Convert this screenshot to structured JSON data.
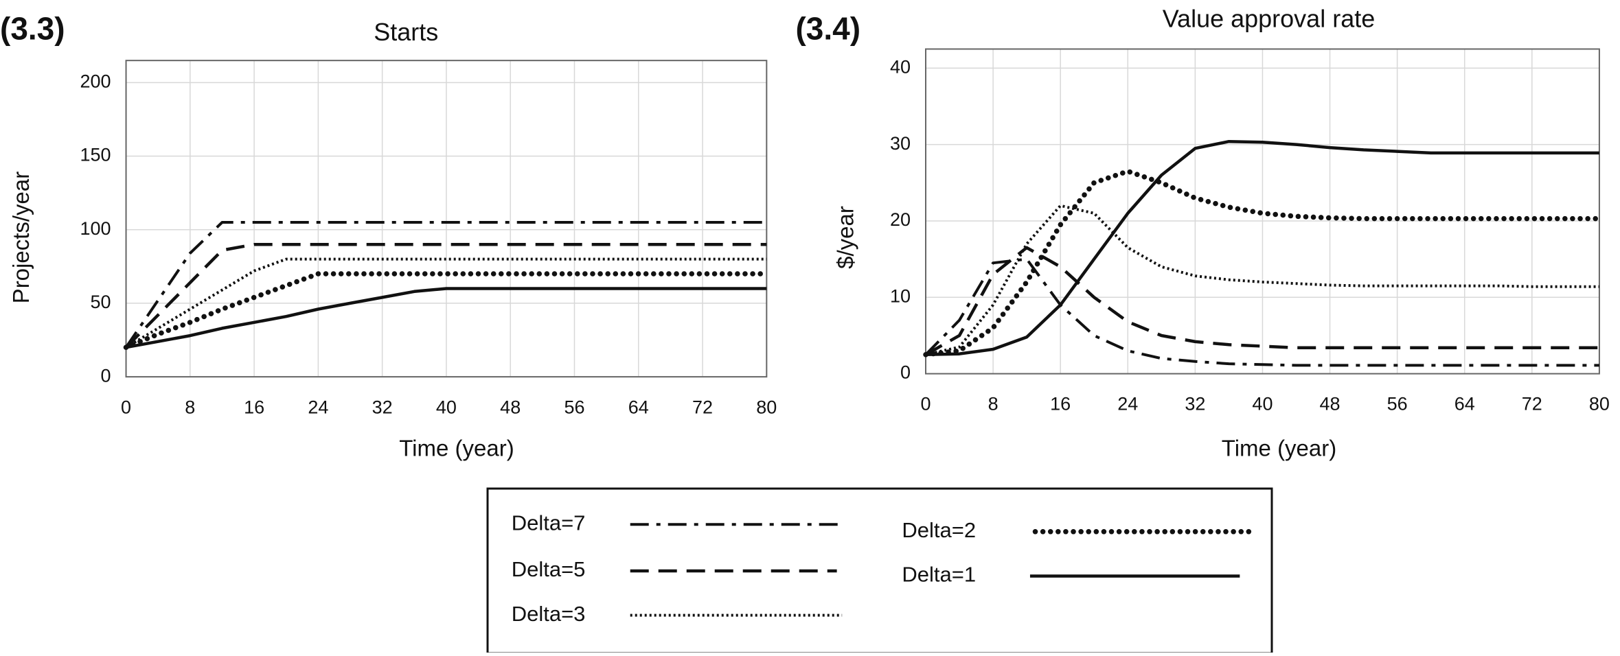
{
  "chart_data": [
    {
      "type": "line",
      "panel_label": "(3.3)",
      "title": "Starts",
      "x_label": "Time (year)",
      "y_label": "Projects/year",
      "x": [
        0,
        4,
        8,
        12,
        16,
        20,
        24,
        28,
        32,
        36,
        40,
        44,
        48,
        52,
        56,
        60,
        64,
        68,
        72,
        76,
        80
      ],
      "xlim": [
        0,
        80
      ],
      "xticks": [
        0,
        8,
        16,
        24,
        32,
        40,
        48,
        56,
        64,
        72,
        80
      ],
      "ylim": [
        0,
        215
      ],
      "yticks": [
        0,
        50,
        100,
        150,
        200
      ],
      "grid": true,
      "series": [
        {
          "name": "Delta=7",
          "color": "#111111",
          "dash": "dashdot",
          "values": [
            20,
            52,
            84,
            105,
            105,
            105,
            105,
            105,
            105,
            105,
            105,
            105,
            105,
            105,
            105,
            105,
            105,
            105,
            105,
            105,
            105
          ]
        },
        {
          "name": "Delta=5",
          "color": "#111111",
          "dash": "dash",
          "values": [
            20,
            42,
            64,
            86,
            90,
            90,
            90,
            90,
            90,
            90,
            90,
            90,
            90,
            90,
            90,
            90,
            90,
            90,
            90,
            90,
            90
          ]
        },
        {
          "name": "Delta=3",
          "color": "#111111",
          "dash": "finedot",
          "values": [
            20,
            33,
            46,
            59,
            72,
            80,
            80,
            80,
            80,
            80,
            80,
            80,
            80,
            80,
            80,
            80,
            80,
            80,
            80,
            80,
            80
          ]
        },
        {
          "name": "Delta=2",
          "color": "#111111",
          "dash": "dot",
          "values": [
            20,
            29,
            37,
            46,
            54,
            62,
            70,
            70,
            70,
            70,
            70,
            70,
            70,
            70,
            70,
            70,
            70,
            70,
            70,
            70,
            70
          ]
        },
        {
          "name": "Delta=1",
          "color": "#111111",
          "dash": "solid",
          "values": [
            20,
            24,
            28,
            33,
            37,
            41,
            46,
            50,
            54,
            58,
            60,
            60,
            60,
            60,
            60,
            60,
            60,
            60,
            60,
            60,
            60
          ]
        }
      ]
    },
    {
      "type": "line",
      "panel_label": "(3.4)",
      "title": "Value approval rate",
      "x_label": "Time (year)",
      "y_label": "$/year",
      "x": [
        0,
        4,
        8,
        12,
        16,
        20,
        24,
        28,
        32,
        36,
        40,
        44,
        48,
        52,
        56,
        60,
        64,
        68,
        72,
        76,
        80
      ],
      "xlim": [
        0,
        80
      ],
      "xticks": [
        0,
        8,
        16,
        24,
        32,
        40,
        48,
        56,
        64,
        72,
        80
      ],
      "ylim": [
        0,
        42.5
      ],
      "yticks": [
        0,
        10,
        20,
        30,
        40
      ],
      "grid": true,
      "series": [
        {
          "color": "#111111",
          "dash": "dashdot",
          "values": [
            2.5,
            7,
            14.5,
            15,
            9,
            5,
            3,
            2,
            1.6,
            1.3,
            1.2,
            1.1,
            1.1,
            1.1,
            1.1,
            1.1,
            1.1,
            1.1,
            1.1,
            1.1,
            1.1
          ]
        },
        {
          "color": "#111111",
          "dash": "dash",
          "values": [
            2.5,
            5,
            13,
            16.5,
            14,
            10,
            6.8,
            5,
            4.2,
            3.8,
            3.6,
            3.4,
            3.4,
            3.4,
            3.4,
            3.4,
            3.4,
            3.4,
            3.4,
            3.4,
            3.4
          ]
        },
        {
          "color": "#111111",
          "dash": "finedot",
          "values": [
            2.5,
            3.5,
            9,
            17,
            22,
            21,
            16.5,
            14,
            12.8,
            12.3,
            12,
            11.8,
            11.6,
            11.5,
            11.5,
            11.5,
            11.5,
            11.5,
            11.4,
            11.4,
            11.4
          ]
        },
        {
          "color": "#111111",
          "dash": "dot",
          "values": [
            2.5,
            3,
            6,
            12,
            19.5,
            25,
            26.5,
            25,
            23,
            21.8,
            21,
            20.6,
            20.4,
            20.3,
            20.3,
            20.3,
            20.3,
            20.3,
            20.3,
            20.3,
            20.3
          ]
        },
        {
          "color": "#111111",
          "dash": "solid",
          "values": [
            2.5,
            2.6,
            3.2,
            4.8,
            9,
            15,
            21,
            26,
            29.5,
            30.4,
            30.3,
            30,
            29.6,
            29.3,
            29.1,
            28.9,
            28.9,
            28.9,
            28.9,
            28.9,
            28.9
          ]
        }
      ]
    }
  ]
}
